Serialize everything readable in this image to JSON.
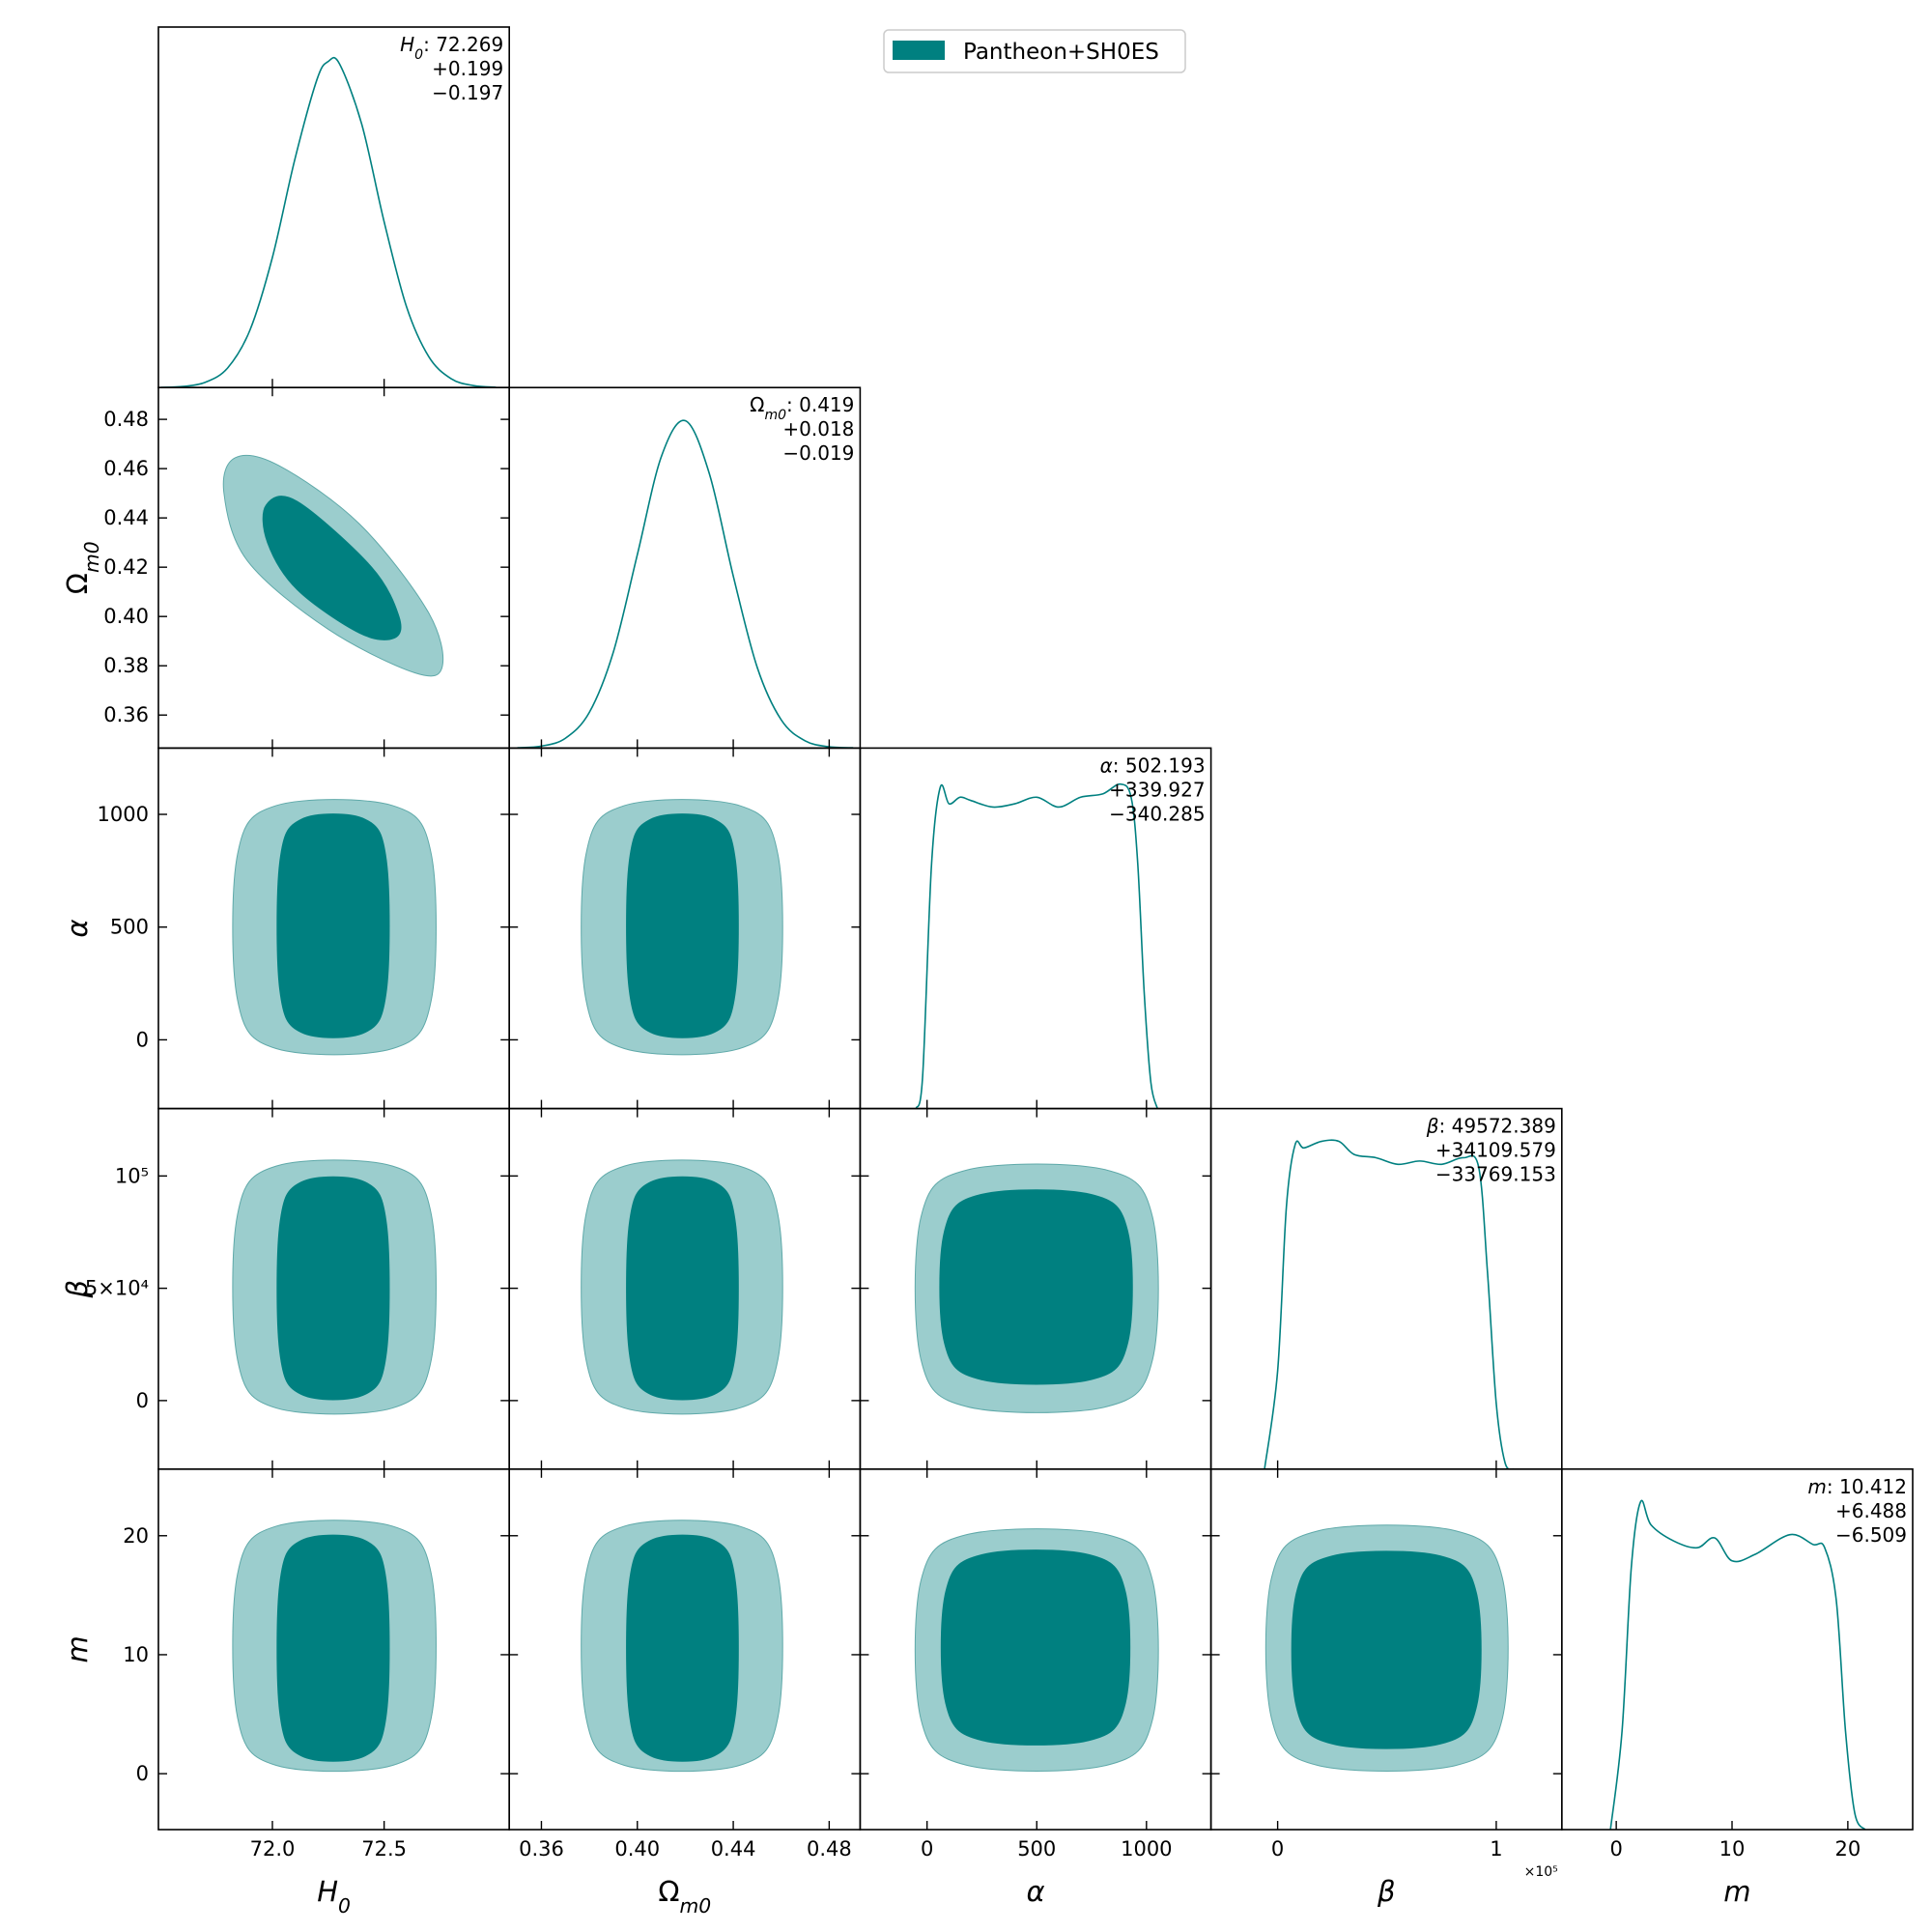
{
  "chart_data": {
    "type": "corner",
    "series": [
      {
        "name": "Pantheon+SH0ES",
        "color": "#008080",
        "light_color": "#9bcdcd"
      }
    ],
    "legend_loc": "upper center",
    "summary_separator": ": ",
    "density_ylim": [
      0,
      1.1
    ],
    "parameters": [
      {
        "symbol": "H",
        "subscript": "0",
        "italic": true,
        "lim": [
          71.49,
          73.06
        ],
        "xticks": [
          {
            "value": 72,
            "label": "72.0"
          },
          72.5
        ],
        "summary": {
          "median": 72.269,
          "upper": {
            "value": 0.199,
            "label": "+0.199"
          },
          "lower": {
            "value": -0.197,
            "label": "−0.197"
          }
        },
        "density": {
          "x": [
            71.5,
            71.6,
            71.7,
            71.8,
            71.9,
            72.0,
            72.1,
            72.2,
            72.25,
            72.3,
            72.4,
            72.5,
            72.6,
            72.7,
            72.8,
            72.9,
            73.0
          ],
          "y": [
            0.0005,
            0.0033,
            0.016,
            0.06,
            0.176,
            0.397,
            0.695,
            0.941,
            0.995,
            0.988,
            0.803,
            0.506,
            0.247,
            0.094,
            0.027,
            0.006,
            0.001
          ]
        },
        "contours": []
      },
      {
        "symbol": "Ω",
        "subscript": "m0",
        "italic": false,
        "lim": [
          0.3466,
          0.4929
        ],
        "xticks": [
          0.36,
          {
            "value": 0.4,
            "label": "0.40"
          },
          0.44,
          0.48
        ],
        "yticks": [
          0.36,
          0.38,
          {
            "value": 0.4,
            "label": "0.40"
          },
          0.42,
          0.44,
          0.46,
          0.48
        ],
        "summary": {
          "median": 0.419,
          "upper": {
            "value": 0.018,
            "label": "+0.018"
          },
          "lower": {
            "value": -0.019,
            "label": "−0.019"
          }
        },
        "density": {
          "x": [
            0.35,
            0.36,
            0.37,
            0.38,
            0.39,
            0.4,
            0.41,
            0.42,
            0.43,
            0.44,
            0.45,
            0.46,
            0.47,
            0.48,
            0.49
          ],
          "y": [
            0.001,
            0.006,
            0.03,
            0.109,
            0.293,
            0.59,
            0.889,
            0.999,
            0.838,
            0.525,
            0.246,
            0.086,
            0.022,
            0.004,
            0.001
          ]
        },
        "contours": [
          {
            "outer": {
              "x": [
                71.833,
                72.028,
                72.389,
                72.694,
                72.761,
                72.639,
                72.25,
                71.889,
                71.783
              ],
              "y": [
                0.4644,
                0.4613,
                0.4376,
                0.4023,
                0.38,
                0.3771,
                0.3948,
                0.4225,
                0.4502
              ]
            },
            "inner": {
              "x": [
                71.972,
                72.111,
                72.444,
                72.567,
                72.544,
                72.389,
                72.111,
                71.978
              ],
              "y": [
                0.4452,
                0.4467,
                0.42,
                0.3998,
                0.3912,
                0.3933,
                0.4109,
                0.43
              ]
            }
          }
        ]
      },
      {
        "symbol": "α",
        "italic": true,
        "lim": [
          -305,
          1294
        ],
        "xticks": [
          0,
          500,
          1000
        ],
        "yticks": [
          0,
          500,
          1000
        ],
        "summary": {
          "median": 502.193,
          "upper": {
            "value": 339.927,
            "label": "+339.927"
          },
          "lower": {
            "value": -340.285,
            "label": "−340.285"
          }
        },
        "density": {
          "x": [
            -50,
            -20,
            20,
            60,
            100,
            150,
            200,
            300,
            400,
            500,
            600,
            700,
            800,
            880,
            930,
            960,
            990,
            1020,
            1050
          ],
          "y": [
            0,
            0.1,
            0.74,
            0.98,
            0.93,
            0.95,
            0.94,
            0.92,
            0.93,
            0.95,
            0.92,
            0.95,
            0.96,
            0.99,
            0.95,
            0.75,
            0.35,
            0.08,
            0
          ]
        },
        "contours": [
          {
            "outer": {
              "x": [
                72.017,
                72.538,
                72.711,
                72.711,
                72.538,
                72.017,
                71.844,
                71.844
              ],
              "y": [
                1039,
                1039,
                823,
                177,
                -39,
                -39,
                177,
                823
              ]
            },
            "inner": {
              "x": [
                72.129,
                72.415,
                72.511,
                72.511,
                72.415,
                72.129,
                72.033,
                72.033
              ],
              "y": [
                978,
                978,
                789,
                222,
                33,
                33,
                222,
                789
              ]
            }
          },
          {
            "outer": {
              "x": [
                0.3946,
                0.4426,
                0.4586,
                0.4586,
                0.4426,
                0.3946,
                0.3786,
                0.3786
              ],
              "y": [
                1039,
                1039,
                823,
                177,
                -39,
                -39,
                177,
                823
              ]
            },
            "inner": {
              "x": [
                0.4055,
                0.4321,
                0.441,
                0.441,
                0.4321,
                0.4055,
                0.3966,
                0.3966
              ],
              "y": [
                978,
                978,
                789,
                222,
                33,
                33,
                222,
                789
              ]
            }
          }
        ]
      },
      {
        "symbol": "β",
        "italic": true,
        "lim": [
          -30500,
          130000
        ],
        "xticks": [
          0,
          {
            "value": 100000,
            "label": "1"
          }
        ],
        "offset_label": "×10⁵",
        "yticks": [
          0,
          {
            "value": 50000,
            "label": "5×10⁴"
          },
          {
            "value": 100000,
            "label": "10⁵"
          }
        ],
        "summary": {
          "median": 49572.389,
          "upper": {
            "value": 34109.579,
            "label": "+34109.579"
          },
          "lower": {
            "value": -33769.153,
            "label": "−33769.153"
          }
        },
        "density": {
          "x": [
            -6000,
            0,
            4000,
            8000,
            12000,
            20000,
            28000,
            35000,
            45000,
            55000,
            65000,
            75000,
            85000,
            92000,
            96000,
            100000,
            104000,
            108000
          ],
          "y": [
            0,
            0.3,
            0.8,
            0.99,
            0.98,
            1.0,
            1.0,
            0.96,
            0.95,
            0.93,
            0.94,
            0.93,
            0.95,
            0.92,
            0.6,
            0.2,
            0.02,
            0
          ]
        },
        "contours": [
          {
            "outer": {
              "x": [
                72.017,
                72.538,
                72.711,
                72.711,
                72.538,
                72.017,
                71.844,
                71.844
              ],
              "y": [
                104400,
                104400,
                82860,
                18240,
                -3300,
                -3300,
                18240,
                82860
              ]
            },
            "inner": {
              "x": [
                72.129,
                72.415,
                72.511,
                72.511,
                72.415,
                72.129,
                72.033,
                72.033
              ],
              "y": [
                97250,
                97250,
                78350,
                21650,
                2750,
                2750,
                21650,
                78350
              ]
            }
          },
          {
            "outer": {
              "x": [
                0.3946,
                0.4426,
                0.4586,
                0.4586,
                0.4426,
                0.3946,
                0.3786,
                0.3786
              ],
              "y": [
                104400,
                104400,
                82860,
                18240,
                -3300,
                -3300,
                18240,
                82860
              ]
            },
            "inner": {
              "x": [
                0.4055,
                0.4321,
                0.441,
                0.441,
                0.4321,
                0.4055,
                0.3966,
                0.3966
              ],
              "y": [
                97250,
                97250,
                78350,
                21650,
                2750,
                2750,
                21650,
                78350
              ]
            }
          },
          {
            "outer": {
              "x": [
                183,
                817,
                1028,
                1028,
                817,
                183,
                -28,
                -28
              ],
              "y": [
                102700,
                102700,
                81610,
                18340,
                -2750,
                -2750,
                18340,
                81610
              ]
            },
            "inner": {
              "x": [
                246,
                748,
                915,
                915,
                748,
                246,
                79,
                79
              ],
              "y": [
                91760,
                91760,
                75280,
                25820,
                9340,
                9340,
                25820,
                75280
              ]
            }
          }
        ]
      },
      {
        "symbol": "m",
        "italic": true,
        "lim": [
          -4.7,
          25.6
        ],
        "xticks": [
          0,
          10,
          20
        ],
        "yticks": [
          0,
          10,
          20
        ],
        "summary": {
          "median": 10.412,
          "upper": {
            "value": 6.488,
            "label": "+6.488"
          },
          "lower": {
            "value": -6.509,
            "label": "−6.509"
          }
        },
        "density": {
          "x": [
            -0.5,
            0.5,
            1.3,
            2.1,
            3,
            5,
            7,
            8.5,
            10,
            12,
            15,
            17,
            18,
            19,
            19.8,
            20.6,
            21.5
          ],
          "y": [
            0,
            0.3,
            0.8,
            1.0,
            0.93,
            0.88,
            0.86,
            0.89,
            0.82,
            0.84,
            0.9,
            0.87,
            0.86,
            0.7,
            0.3,
            0.05,
            0
          ]
        },
        "contours": [
          {
            "outer": {
              "x": [
                72.017,
                72.538,
                72.711,
                72.711,
                72.538,
                72.017,
                71.844,
                71.844
              ],
              "y": [
                20.8,
                20.8,
                16.78,
                4.72,
                0.7,
                0.7,
                4.72,
                16.78
              ]
            },
            "inner": {
              "x": [
                72.129,
                72.415,
                72.511,
                72.511,
                72.415,
                72.129,
                72.033,
                72.033
              ],
              "y": [
                19.6,
                19.6,
                15.98,
                5.12,
                1.5,
                1.5,
                5.12,
                15.98
              ]
            }
          },
          {
            "outer": {
              "x": [
                0.3946,
                0.4426,
                0.4586,
                0.4586,
                0.4426,
                0.3946,
                0.3786,
                0.3786
              ],
              "y": [
                20.8,
                20.8,
                16.78,
                4.72,
                0.7,
                0.7,
                4.72,
                16.78
              ]
            },
            "inner": {
              "x": [
                0.4055,
                0.4321,
                0.441,
                0.441,
                0.4321,
                0.4055,
                0.3966,
                0.3966
              ],
              "y": [
                19.6,
                19.6,
                15.98,
                5.12,
                1.5,
                1.5,
                5.12,
                15.98
              ]
            }
          },
          {
            "outer": {
              "x": [
                183,
                817,
                1028,
                1028,
                817,
                183,
                -28,
                -28
              ],
              "y": [
                20.1,
                20.1,
                16.22,
                4.58,
                0.7,
                0.7,
                4.58,
                16.22
              ]
            },
            "inner": {
              "x": [
                249,
                740,
                904,
                904,
                740,
                249,
                85,
                85
              ],
              "y": [
                18.4,
                18.4,
                15.28,
                5.92,
                2.8,
                2.8,
                5.92,
                15.28
              ]
            }
          },
          {
            "outer": {
              "x": [
                18320,
                81680,
                102800,
                102800,
                81680,
                18320,
                -2800,
                -2800
              ],
              "y": [
                20.4,
                20.4,
                16.46,
                4.64,
                0.7,
                0.7,
                4.64,
                16.46
              ]
            },
            "inner": {
              "x": [
                25000,
                74500,
                91000,
                91000,
                74500,
                25000,
                8500,
                8500
              ],
              "y": [
                18.3,
                18.3,
                15.14,
                5.66,
                2.5,
                2.5,
                5.66,
                15.14
              ]
            }
          }
        ]
      }
    ]
  }
}
